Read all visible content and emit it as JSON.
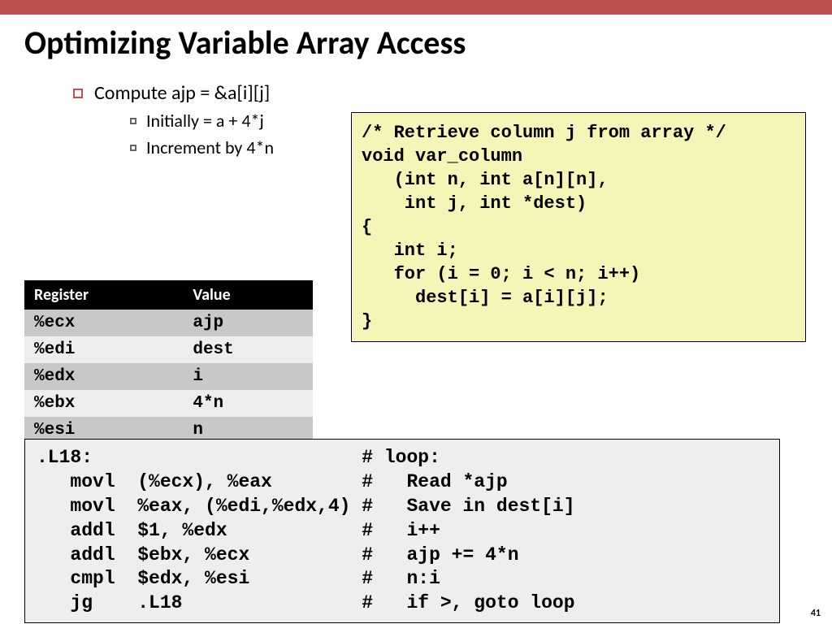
{
  "top_bar_color": "#c0504d",
  "title": "Optimizing Variable Array Access",
  "bullets": {
    "main": "Compute ajp = &a[i][j]",
    "sub1": "Initially = a + 4*j",
    "sub2": "Increment by 4*n"
  },
  "register_table": {
    "headers": [
      "Register",
      "Value"
    ],
    "rows": [
      {
        "reg": "%ecx",
        "val": "ajp"
      },
      {
        "reg": "%edi",
        "val": "dest"
      },
      {
        "reg": "%edx",
        "val": "i"
      },
      {
        "reg": "%ebx",
        "val": "4*n"
      },
      {
        "reg": "%esi",
        "val": "n"
      }
    ]
  },
  "c_code": "/* Retrieve column j from array */\nvoid var_column\n   (int n, int a[n][n],\n    int j, int *dest)\n{\n   int i;\n   for (i = 0; i < n; i++)\n     dest[i] = a[i][j];\n}",
  "asm_code": ".L18:                        # loop:\n   movl  (%ecx), %eax        #   Read *ajp\n   movl  %eax, (%edi,%edx,4) #   Save in dest[i]\n   addl  $1, %edx            #   i++\n   addl  $ebx, %ecx          #   ajp += 4*n\n   cmpl  $edx, %esi          #   n:i\n   jg    .L18                #   if >, goto loop",
  "page_number": "41"
}
